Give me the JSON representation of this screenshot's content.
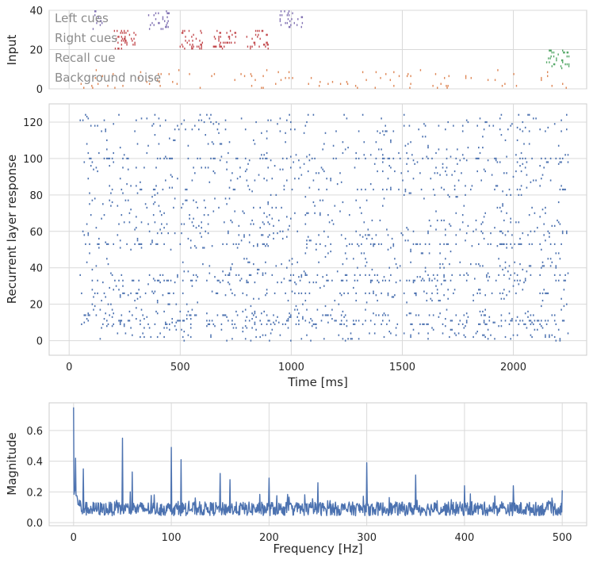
{
  "colors": {
    "left_cues": "#8172b3",
    "right_cues": "#c44e52",
    "recall_cue": "#55a868",
    "background_noise": "#dd8452",
    "spikes": "#4c72b0",
    "spectrum": "#4c72b0",
    "panel_bg": "#ffffff",
    "grid": "#d9d9d9",
    "frame": "#cccccc"
  },
  "chart_data": [
    {
      "type": "scatter",
      "panel": "input",
      "ylabel": "Input",
      "xlim": [
        -90,
        2330
      ],
      "ylim": [
        0,
        40
      ],
      "yticks": [
        0,
        20,
        40
      ],
      "xticks": [
        0,
        500,
        1000,
        1500,
        2000
      ],
      "grid": true,
      "legend_position": "upper left",
      "series": [
        {
          "name": "Left cues",
          "channels": [
            30,
            40
          ],
          "windows": [
            [
              100,
              150
            ],
            [
              350,
              450
            ],
            [
              950,
              1050
            ]
          ]
        },
        {
          "name": "Right cues",
          "channels": [
            20,
            30
          ],
          "windows": [
            [
              200,
              300
            ],
            [
              500,
              600
            ],
            [
              650,
              750
            ],
            [
              800,
              900
            ]
          ]
        },
        {
          "name": "Recall cue",
          "channels": [
            10,
            20
          ],
          "windows": [
            [
              2150,
              2250
            ]
          ]
        },
        {
          "name": "Background noise",
          "channels": [
            0,
            10
          ],
          "windows": [
            [
              50,
              2250
            ]
          ]
        }
      ]
    },
    {
      "type": "scatter",
      "panel": "recurrent",
      "xlabel": "Time [ms]",
      "ylabel": "Recurrent layer response",
      "xlim": [
        -90,
        2330
      ],
      "ylim": [
        -8,
        130
      ],
      "xticks": [
        0,
        500,
        1000,
        1500,
        2000
      ],
      "xtick_labels": [
        "0",
        "500",
        "1000",
        "1500",
        "2000"
      ],
      "yticks": [
        0,
        20,
        40,
        60,
        80,
        100,
        120
      ],
      "ytick_labels": [
        "0",
        "20",
        "40",
        "60",
        "80",
        "100",
        "120"
      ],
      "neurons": [
        0,
        124
      ],
      "time_range": [
        50,
        2250
      ],
      "grid": true
    },
    {
      "type": "line",
      "panel": "spectrum",
      "xlabel": "Frequency [Hz]",
      "ylabel": "Magnitude",
      "xlim": [
        -25,
        525
      ],
      "ylim": [
        -0.02,
        0.78
      ],
      "xticks": [
        0,
        100,
        200,
        300,
        400,
        500
      ],
      "xtick_labels": [
        "0",
        "100",
        "200",
        "300",
        "400",
        "500"
      ],
      "yticks": [
        0.0,
        0.2,
        0.4,
        0.6
      ],
      "ytick_labels": [
        "0.0",
        "0.2",
        "0.4",
        "0.6"
      ],
      "grid": true,
      "baseline": 0.1,
      "peaks": [
        {
          "x": 0,
          "y": 0.75
        },
        {
          "x": 2,
          "y": 0.42
        },
        {
          "x": 10,
          "y": 0.35
        },
        {
          "x": 50,
          "y": 0.55
        },
        {
          "x": 60,
          "y": 0.33
        },
        {
          "x": 100,
          "y": 0.49
        },
        {
          "x": 110,
          "y": 0.41
        },
        {
          "x": 150,
          "y": 0.32
        },
        {
          "x": 160,
          "y": 0.28
        },
        {
          "x": 200,
          "y": 0.29
        },
        {
          "x": 250,
          "y": 0.26
        },
        {
          "x": 300,
          "y": 0.39
        },
        {
          "x": 350,
          "y": 0.31
        },
        {
          "x": 400,
          "y": 0.24
        },
        {
          "x": 450,
          "y": 0.24
        },
        {
          "x": 500,
          "y": 0.21
        }
      ]
    }
  ]
}
